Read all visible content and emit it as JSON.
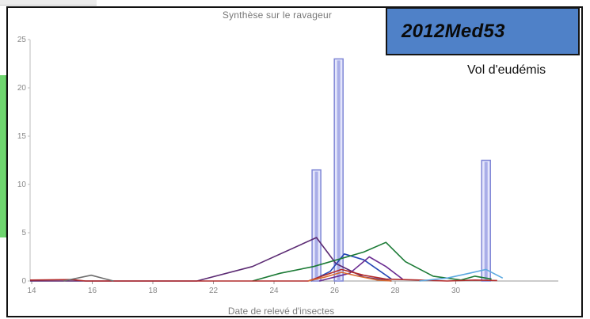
{
  "title": "Synthèse sur le ravageur",
  "dataset_label": "2012Med53",
  "flight_label": "Vol d'eudémis",
  "chart_data": {
    "type": "line",
    "title": "Synthèse sur le ravageur",
    "xlabel": "Date de relevé d'insectes",
    "ylabel": "",
    "xlim": [
      14,
      33
    ],
    "ylim": [
      0,
      25
    ],
    "x_ticks": [
      14,
      16,
      18,
      22,
      24,
      26,
      28,
      30
    ],
    "x_tick_labels": [
      "14",
      "16",
      "18",
      "22",
      "24",
      "26",
      "28",
      "30"
    ],
    "y_ticks": [
      0,
      5,
      10,
      15,
      20,
      25
    ],
    "y_tick_labels": [
      "0",
      "5",
      "10",
      "15",
      "20",
      "25"
    ],
    "bars": [
      {
        "name": "vol-bar-1",
        "x": 24.3,
        "value": 11.5,
        "color": "#7f86d6"
      },
      {
        "name": "vol-bar-2",
        "x": 25.1,
        "value": 23.0,
        "color": "#7f86d6"
      },
      {
        "name": "vol-bar-3",
        "x": 30.4,
        "value": 12.5,
        "color": "#7f86d6"
      }
    ],
    "series": [
      {
        "color": "#5b2a73",
        "points": [
          [
            14.0,
            0
          ],
          [
            15.5,
            0
          ],
          [
            20.0,
            0
          ],
          [
            22.0,
            1.5
          ],
          [
            24.3,
            4.5
          ],
          [
            25.0,
            1.8
          ],
          [
            26.0,
            0.4
          ],
          [
            27.0,
            0
          ]
        ]
      },
      {
        "color": "#2546b5",
        "points": [
          [
            24.1,
            0
          ],
          [
            24.8,
            1.0
          ],
          [
            25.3,
            2.8
          ],
          [
            26.0,
            2.2
          ],
          [
            26.6,
            1.0
          ],
          [
            27.0,
            0.2
          ]
        ]
      },
      {
        "color": "#1b7a35",
        "points": [
          [
            22.0,
            0
          ],
          [
            23.0,
            0.8
          ],
          [
            24.2,
            1.5
          ],
          [
            26.0,
            3.0
          ],
          [
            26.8,
            4.0
          ],
          [
            27.5,
            2.0
          ],
          [
            28.5,
            0.5
          ],
          [
            29.5,
            0.1
          ],
          [
            30.0,
            0.5
          ],
          [
            30.6,
            0.2
          ]
        ]
      },
      {
        "color": "#6a2c91",
        "points": [
          [
            24.4,
            0
          ],
          [
            25.5,
            0.8
          ],
          [
            26.2,
            2.5
          ],
          [
            26.8,
            1.5
          ],
          [
            27.4,
            0.2
          ]
        ]
      },
      {
        "color": "#b22b2b",
        "points": [
          [
            14.0,
            0.1
          ],
          [
            15.5,
            0.15
          ],
          [
            16.0,
            0
          ],
          [
            24.0,
            0
          ],
          [
            24.5,
            0.5
          ],
          [
            25.2,
            1.2
          ],
          [
            26.0,
            0.6
          ],
          [
            26.8,
            0.2
          ],
          [
            28.0,
            0.1
          ],
          [
            29.0,
            0
          ],
          [
            30.0,
            0.1
          ],
          [
            30.8,
            0.05
          ]
        ]
      },
      {
        "color": "#d96a2e",
        "points": [
          [
            24.0,
            0
          ],
          [
            24.6,
            0.4
          ],
          [
            25.2,
            0.9
          ],
          [
            25.8,
            0.5
          ],
          [
            26.5,
            0.1
          ],
          [
            27.0,
            0
          ]
        ]
      },
      {
        "color": "#5ca9e0",
        "points": [
          [
            28.0,
            0
          ],
          [
            29.0,
            0.3
          ],
          [
            29.8,
            0.8
          ],
          [
            30.4,
            1.2
          ],
          [
            31.0,
            0.3
          ]
        ]
      },
      {
        "color": "#6d6d6d",
        "points": [
          [
            15.2,
            0
          ],
          [
            16.2,
            0.6
          ],
          [
            17.0,
            0
          ]
        ]
      }
    ]
  }
}
